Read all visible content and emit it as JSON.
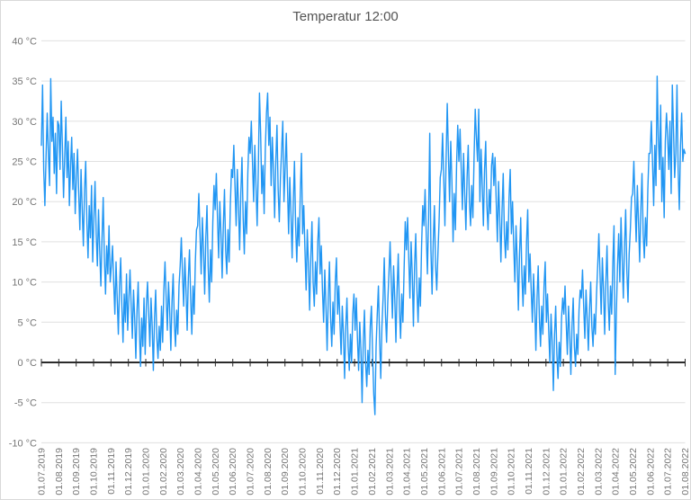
{
  "chart_data": {
    "type": "line",
    "title": "Temperatur 12:00",
    "series_name": "Temperatur",
    "unit": "°C",
    "xlabel": "",
    "ylabel": "",
    "ylim": [
      -10,
      40
    ],
    "y_tick_step": 5,
    "grid": true,
    "legend": "none",
    "x_start": "01.07.2019",
    "x_end": "01.08.2022",
    "y_ticks": [
      {
        "value": 40,
        "label": "40 °C"
      },
      {
        "value": 35,
        "label": "35 °C"
      },
      {
        "value": 30,
        "label": "30 °C"
      },
      {
        "value": 25,
        "label": "25 °C"
      },
      {
        "value": 20,
        "label": "20 °C"
      },
      {
        "value": 15,
        "label": "15 °C"
      },
      {
        "value": 10,
        "label": "10 °C"
      },
      {
        "value": 5,
        "label": "5 °C"
      },
      {
        "value": 0,
        "label": "0 °C"
      },
      {
        "value": -5,
        "label": "-5 °C"
      },
      {
        "value": -10,
        "label": "-10 °C"
      }
    ],
    "x_tick_labels": [
      "01.07.2019",
      "01.08.2019",
      "01.09.2019",
      "01.10.2019",
      "01.11.2019",
      "01.12.2019",
      "01.01.2020",
      "01.02.2020",
      "01.03.2020",
      "01.04.2020",
      "01.05.2020",
      "01.06.2020",
      "01.07.2020",
      "01.08.2020",
      "01.09.2020",
      "01.10.2020",
      "01.11.2020",
      "01.12.2020",
      "01.01.2021",
      "01.02.2021",
      "01.03.2021",
      "01.04.2021",
      "01.05.2021",
      "01.06.2021",
      "01.07.2021",
      "01.08.2021",
      "01.09.2021",
      "01.10.2021",
      "01.11.2021",
      "01.12.2021",
      "01.01.2022",
      "01.02.2022",
      "01.03.2022",
      "01.04.2022",
      "01.05.2022",
      "01.06.2022",
      "01.07.2022",
      "01.08.2022"
    ],
    "values": [
      27,
      34.5,
      24,
      19.5,
      25.5,
      31,
      26,
      22,
      35.3,
      27.5,
      30.5,
      23.5,
      28.5,
      21,
      30,
      29.5,
      24,
      32.5,
      27,
      20.5,
      25.5,
      30.5,
      23,
      27.5,
      19.5,
      24.5,
      28,
      21.5,
      26,
      18.5,
      23,
      26.5,
      21,
      16.5,
      24,
      19,
      14.5,
      21.5,
      25,
      17.5,
      13,
      19.5,
      15.5,
      22,
      12.5,
      18,
      22.5,
      16,
      12,
      19,
      14,
      9.5,
      15.5,
      20.5,
      13,
      8.5,
      14.5,
      11,
      17,
      10,
      12,
      14.5,
      10,
      6,
      12.5,
      8,
      3.5,
      9.5,
      13,
      7,
      2.5,
      8.5,
      5,
      11,
      4,
      8,
      11.5,
      7,
      3,
      9,
      5.5,
      0.5,
      6.5,
      10,
      4,
      -0.5,
      5.5,
      2,
      8,
      1,
      7,
      10,
      6,
      2,
      8,
      4.5,
      -1,
      5.5,
      9,
      3,
      0.5,
      4.5,
      1.5,
      7,
      2.5,
      9,
      12.5,
      8,
      4,
      10,
      6.5,
      1.5,
      7.5,
      11,
      5,
      2,
      6.5,
      3.5,
      9.5,
      12,
      15.5,
      11,
      7,
      13,
      9,
      4,
      10.5,
      14,
      8,
      3.5,
      9.5,
      6,
      12.5,
      16.5,
      17,
      21,
      16,
      11,
      18,
      14,
      8.5,
      15.5,
      19.5,
      12,
      7.5,
      14,
      10,
      17.5,
      22,
      19,
      23.5,
      18,
      13,
      20,
      16,
      10.5,
      17,
      21.5,
      14,
      11,
      16.5,
      12.5,
      19.5,
      24,
      23,
      27,
      22,
      17,
      24,
      19.5,
      14,
      21,
      25.5,
      18,
      13.5,
      20,
      16,
      23.5,
      28,
      26,
      30,
      25,
      20,
      27,
      22,
      17,
      24,
      33.5,
      28.5,
      21,
      24.5,
      18.5,
      26.5,
      31,
      33.5,
      27,
      30.5,
      22,
      28,
      24,
      18,
      25,
      29.5,
      21.5,
      17.5,
      23,
      26.5,
      30,
      20,
      24,
      28.5,
      22,
      16,
      23,
      18.5,
      13,
      20,
      25,
      17,
      12.5,
      18,
      14.5,
      21,
      26,
      16,
      19.5,
      14,
      9,
      16.5,
      12,
      6.5,
      13,
      17.5,
      10,
      7,
      12.5,
      8.5,
      15,
      18,
      11,
      14.5,
      9,
      5,
      11.5,
      7,
      1.5,
      8,
      12.5,
      5.5,
      2,
      7.5,
      3.5,
      10,
      13,
      6,
      9.5,
      5,
      1,
      7,
      3.5,
      -2,
      4.5,
      8,
      2,
      -1,
      3.5,
      0,
      6,
      8.5,
      4,
      8,
      3,
      -1,
      5,
      1.5,
      -5,
      2.5,
      6.5,
      0,
      -3,
      1.5,
      -1.5,
      4.5,
      7,
      1,
      -4,
      -6.5,
      2,
      6,
      9.5,
      3,
      -2,
      4.5,
      8,
      13,
      6,
      2.5,
      7.5,
      11,
      15,
      10,
      5.5,
      12,
      8,
      2.5,
      9,
      13.5,
      6.5,
      3,
      8.5,
      5,
      11.5,
      17.5,
      14,
      18,
      13,
      8,
      15,
      11,
      4.5,
      12,
      16,
      9,
      5,
      10.5,
      7,
      14.5,
      19.5,
      17,
      21.5,
      16,
      11,
      18,
      28.5,
      14,
      8.5,
      15,
      19.5,
      12,
      9,
      13.5,
      17.5,
      23,
      24,
      28.5,
      23,
      17,
      25,
      32.2,
      26,
      20,
      27.5,
      22.5,
      15,
      21,
      16.5,
      24.5,
      29.5,
      25,
      29,
      24,
      19,
      26,
      21,
      16.5,
      23,
      27,
      20,
      17,
      22,
      18,
      25.5,
      31.5,
      28,
      25,
      31.5,
      20,
      26.5,
      22,
      17,
      24,
      27.5,
      19.5,
      16.5,
      21.5,
      18.5,
      24.5,
      26,
      22,
      25.5,
      20,
      15,
      22.5,
      18,
      12.5,
      19,
      23.5,
      16,
      13,
      17.5,
      14,
      20.5,
      24,
      16,
      20,
      14.5,
      10,
      17,
      12.5,
      6.5,
      13.5,
      18,
      11,
      7,
      12,
      8.5,
      15,
      19,
      10,
      13.5,
      9,
      5,
      11,
      7,
      1.5,
      8,
      12,
      5.5,
      2,
      7,
      3.5,
      9.5,
      12.5,
      5,
      8.5,
      4,
      0,
      6,
      2.5,
      -3.5,
      3.5,
      7,
      1,
      -2,
      2.5,
      -0.5,
      5.5,
      8,
      6,
      9.5,
      5,
      1,
      7,
      3.5,
      -1.5,
      4.5,
      8,
      2,
      -0.5,
      3.5,
      1,
      6.5,
      9,
      8,
      11.5,
      7,
      3,
      9,
      5.5,
      1.5,
      6.5,
      10,
      4.5,
      2,
      6,
      3.5,
      8.5,
      12,
      16,
      11,
      6,
      13,
      9,
      3.5,
      10,
      14.5,
      7.5,
      4,
      9.5,
      6,
      12.5,
      17,
      -1.5,
      6,
      12,
      16,
      10,
      18,
      13,
      8,
      14.5,
      19,
      11.5,
      7.5,
      13.5,
      16.5,
      20.5,
      21,
      25,
      20,
      15,
      22,
      17.5,
      12.5,
      19,
      23.5,
      16,
      13,
      18,
      14.5,
      21.5,
      26,
      26,
      30,
      25,
      19.5,
      27,
      22,
      35.6,
      28,
      24,
      32,
      20,
      25.5,
      18,
      27.5,
      31,
      28,
      24,
      30,
      21,
      34.5,
      29,
      23,
      26,
      34.5,
      24,
      19,
      27,
      31,
      25,
      26.5,
      26
    ]
  },
  "colors": {
    "line": "#2196f3",
    "grid": "#e0e0e0",
    "axis": "#2b2b2b",
    "tick_label": "#757575",
    "title": "#545454",
    "border": "#d9d9d9",
    "background": "#ffffff"
  }
}
